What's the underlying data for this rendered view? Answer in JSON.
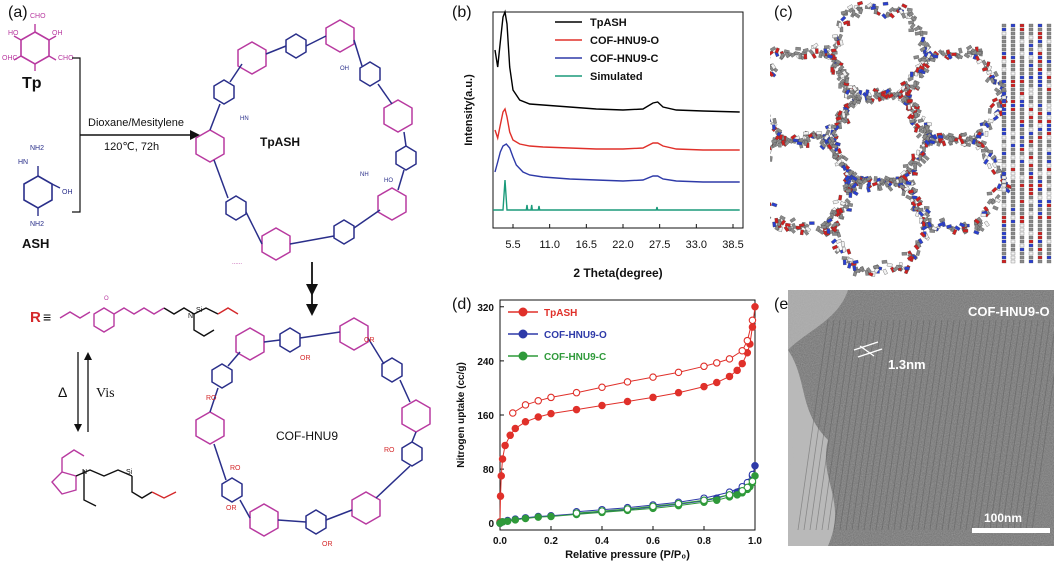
{
  "panel_labels": {
    "a": "(a)",
    "b": "(b)",
    "c": "(c)",
    "d": "(d)",
    "e": "(e)"
  },
  "scheme": {
    "monomer_tp": "Tp",
    "monomer_ash": "ASH",
    "conditions_solvent": "Dioxane/Mesitylene",
    "conditions_temp_time": "120℃, 72h",
    "product_1": "TpASH",
    "product_2": "COF-HNU9",
    "r_prefix": "R",
    "r_equiv": "≡",
    "heat_symbol": "Δ",
    "light_label": "Vis",
    "atom_labels": {
      "cho": "CHO",
      "ohc": "OHC",
      "oh": "OH",
      "ho": "HO",
      "hn": "HN",
      "nh": "NH",
      "nh2": "NH2",
      "nh2_ash_top": "NH2",
      "hn_ash": "HN",
      "oh_ash": "OH",
      "ro": "RO",
      "or": "OR",
      "o": "O",
      "n": "N",
      "si": "Si",
      "dotted_end": "......"
    }
  },
  "chart_data": [
    {
      "type": "line",
      "panel": "b",
      "xlabel": "2 Theta(degree)",
      "ylabel": "Intensity(a.u.)",
      "xlim": [
        2.5,
        40.0
      ],
      "ticks": [
        "5.5",
        "11.0",
        "16.5",
        "22.0",
        "27.5",
        "33.0",
        "38.5"
      ],
      "tick_values": [
        5.5,
        11.0,
        16.5,
        22.0,
        27.5,
        33.0,
        38.5
      ],
      "legend": [
        "TpASH",
        "COF-HNU9-O",
        "COF-HNU9-C",
        "Simulated"
      ],
      "legend_placement": "top-right",
      "series": [
        {
          "name": "TpASH",
          "color": "#000000",
          "x": [
            2.8,
            3.2,
            3.6,
            4.0,
            4.3,
            4.6,
            5.0,
            5.5,
            6.5,
            8.0,
            10.0,
            14.0,
            18.0,
            22.0,
            25.0,
            26.5,
            27.2,
            28.0,
            30.0,
            34.0,
            39.5
          ],
          "y": [
            0.62,
            0.45,
            0.7,
            0.95,
            1.0,
            0.88,
            0.45,
            0.22,
            0.12,
            0.08,
            0.07,
            0.05,
            0.03,
            0.02,
            0.03,
            0.09,
            0.1,
            0.05,
            0.02,
            0.01,
            0.0
          ]
        },
        {
          "name": "COF-HNU9-O",
          "color": "#e0302a",
          "x": [
            2.8,
            3.2,
            3.6,
            4.0,
            4.3,
            4.6,
            5.0,
            5.5,
            6.5,
            8.0,
            10.0,
            14.0,
            18.0,
            22.0,
            25.0,
            26.5,
            27.2,
            28.0,
            30.0,
            34.0,
            39.5
          ],
          "y": [
            0.2,
            0.12,
            0.25,
            0.38,
            0.41,
            0.33,
            0.18,
            0.1,
            0.06,
            0.04,
            0.03,
            0.02,
            0.01,
            0.01,
            0.02,
            0.07,
            0.07,
            0.04,
            0.01,
            0.0,
            0.0
          ]
        },
        {
          "name": "COF-HNU9-C",
          "color": "#2e3aa8",
          "x": [
            2.8,
            3.2,
            3.6,
            4.0,
            4.5,
            5.0,
            5.5,
            6.0,
            7.0,
            8.0,
            10.0,
            14.0,
            18.0,
            22.0,
            25.0,
            26.5,
            27.2,
            28.0,
            30.0,
            34.0,
            39.5
          ],
          "y": [
            0.1,
            0.2,
            0.3,
            0.36,
            0.38,
            0.34,
            0.25,
            0.17,
            0.1,
            0.07,
            0.05,
            0.03,
            0.02,
            0.01,
            0.02,
            0.06,
            0.06,
            0.03,
            0.01,
            0.0,
            0.0
          ]
        },
        {
          "name": "Simulated",
          "color": "#1a9a7a",
          "x": [
            2.5,
            4.0,
            4.3,
            4.6,
            7.5,
            7.6,
            7.7,
            8.2,
            8.3,
            8.4,
            9.3,
            9.4,
            9.5,
            27.0,
            27.1,
            27.2,
            39.5
          ],
          "y": [
            0.0,
            0.0,
            0.3,
            0.0,
            0.0,
            0.05,
            0.0,
            0.0,
            0.05,
            0.0,
            0.0,
            0.04,
            0.0,
            0.0,
            0.03,
            0.0,
            0.0
          ]
        }
      ],
      "stack_offsets": [
        0.0,
        0.0,
        0.0,
        0.0
      ]
    },
    {
      "type": "scatter",
      "panel": "d",
      "xlabel": "Relative pressure (P/P₀)",
      "ylabel": "Nitrogen uptake (cc/g)",
      "xlim": [
        0.0,
        1.0
      ],
      "ylim": [
        -10,
        330
      ],
      "x_ticks": [
        "0.0",
        "0.2",
        "0.4",
        "0.6",
        "0.8",
        "1.0"
      ],
      "x_tick_values": [
        0.0,
        0.2,
        0.4,
        0.6,
        0.8,
        1.0
      ],
      "y_ticks": [
        "0",
        "80",
        "160",
        "240",
        "320"
      ],
      "y_tick_values": [
        0,
        80,
        160,
        240,
        320
      ],
      "legend": [
        "TpASH",
        "COF-HNU9-O",
        "COF-HNU9-C"
      ],
      "legend_placement": "top-left",
      "series": [
        {
          "name": "TpASH",
          "color": "#e0302a",
          "adsorption": {
            "x": [
              0.0,
              0.002,
              0.005,
              0.01,
              0.02,
              0.04,
              0.06,
              0.1,
              0.15,
              0.2,
              0.3,
              0.4,
              0.5,
              0.6,
              0.7,
              0.8,
              0.85,
              0.9,
              0.93,
              0.95,
              0.97,
              0.98,
              0.99,
              1.0
            ],
            "y": [
              2,
              40,
              70,
              95,
              115,
              130,
              140,
              150,
              157,
              162,
              168,
              174,
              180,
              186,
              193,
              202,
              208,
              217,
              226,
              236,
              252,
              265,
              290,
              320
            ]
          },
          "desorption": {
            "x": [
              0.99,
              0.97,
              0.95,
              0.9,
              0.85,
              0.8,
              0.7,
              0.6,
              0.5,
              0.4,
              0.3,
              0.2,
              0.15,
              0.1,
              0.05
            ],
            "y": [
              300,
              270,
              255,
              243,
              237,
              232,
              223,
              216,
              209,
              201,
              193,
              186,
              181,
              175,
              163
            ]
          }
        },
        {
          "name": "COF-HNU9-O",
          "color": "#2e3aa8",
          "adsorption": {
            "x": [
              0.0,
              0.01,
              0.03,
              0.06,
              0.1,
              0.15,
              0.2,
              0.3,
              0.4,
              0.5,
              0.6,
              0.7,
              0.8,
              0.85,
              0.9,
              0.93,
              0.95,
              0.97,
              0.98,
              0.99,
              1.0
            ],
            "y": [
              0,
              2,
              4,
              6,
              8,
              10,
              11,
              14,
              17,
              20,
              24,
              28,
              33,
              37,
              42,
              46,
              50,
              56,
              61,
              70,
              85
            ]
          },
          "desorption": {
            "x": [
              0.99,
              0.97,
              0.95,
              0.9,
              0.8,
              0.7,
              0.6,
              0.5,
              0.4,
              0.3
            ],
            "y": [
              72,
              60,
              54,
              46,
              37,
              31,
              27,
              23,
              20,
              17
            ]
          }
        },
        {
          "name": "COF-HNU9-C",
          "color": "#2f9a3a",
          "adsorption": {
            "x": [
              0.0,
              0.01,
              0.03,
              0.06,
              0.1,
              0.15,
              0.2,
              0.3,
              0.4,
              0.5,
              0.6,
              0.7,
              0.8,
              0.85,
              0.9,
              0.93,
              0.95,
              0.97,
              0.98,
              0.99,
              1.0
            ],
            "y": [
              0,
              2,
              3,
              5,
              7,
              9,
              10,
              13,
              16,
              19,
              22,
              26,
              31,
              34,
              39,
              42,
              45,
              50,
              54,
              60,
              70
            ]
          },
          "desorption": {
            "x": [
              0.99,
              0.97,
              0.95,
              0.9,
              0.8,
              0.7,
              0.6,
              0.5,
              0.4,
              0.3
            ],
            "y": [
              62,
              53,
              48,
              42,
              34,
              29,
              25,
              21,
              18,
              15
            ]
          }
        }
      ]
    }
  ],
  "panel_c": {
    "description_colors": {
      "carbon": "#8a8a8a",
      "nitrogen": "#2a3fd0",
      "oxygen": "#d02020",
      "hydrogen": "#f2f2f2"
    }
  },
  "panel_e": {
    "sample_label": "COF-HNU9-O",
    "spacing_label": "1.3nm",
    "scale_bar_label": "100nm"
  },
  "colors": {
    "magenta": "#b83aa0",
    "navy": "#2a2f8a",
    "red": "#d4282a",
    "black": "#111111"
  }
}
